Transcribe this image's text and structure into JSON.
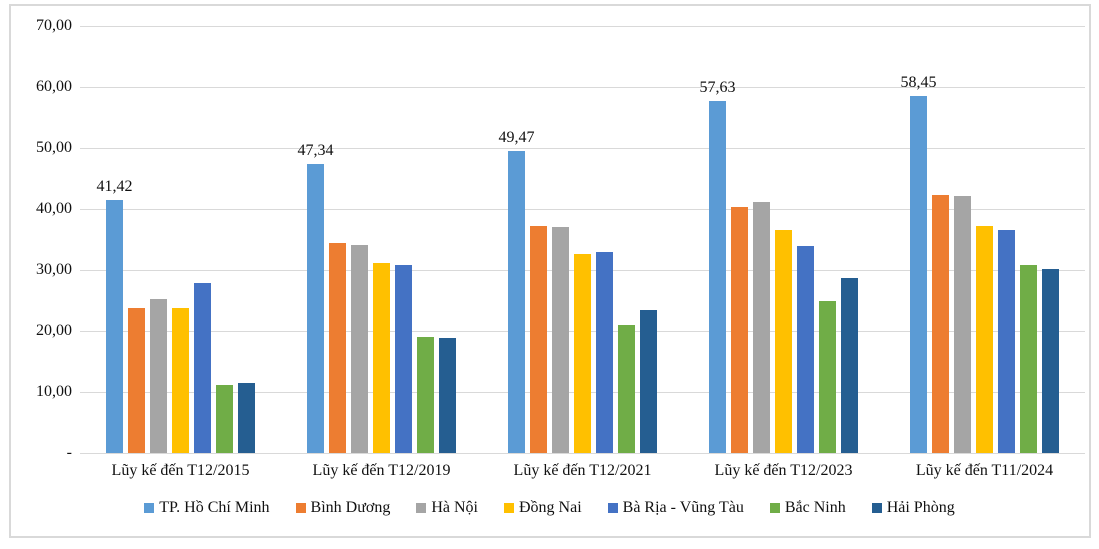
{
  "chart_data": {
    "type": "bar",
    "title": "",
    "xlabel": "",
    "ylabel": "",
    "ylim": [
      0,
      70
    ],
    "grid": true,
    "legend_position": "bottom",
    "yticks": [
      {
        "value": 70,
        "label": "70,00"
      },
      {
        "value": 60,
        "label": "60,00"
      },
      {
        "value": 50,
        "label": "50,00"
      },
      {
        "value": 40,
        "label": "40,00"
      },
      {
        "value": 30,
        "label": "30,00"
      },
      {
        "value": 20,
        "label": "20,00"
      },
      {
        "value": 10,
        "label": "10,00"
      },
      {
        "value": 0,
        "label": "-"
      }
    ],
    "categories": [
      "Lũy kế đến T12/2015",
      "Lũy kế đến T12/2019",
      "Lũy kế đến T12/2021",
      "Lũy kế đến T12/2023",
      "Lũy kế đến T11/2024"
    ],
    "series": [
      {
        "name": "TP. Hồ Chí Minh",
        "color": "#5B9BD5",
        "values": [
          41.42,
          47.34,
          49.47,
          57.63,
          58.45
        ],
        "labels": [
          "41,42",
          "47,34",
          "49,47",
          "57,63",
          "58,45"
        ]
      },
      {
        "name": "Bình Dương",
        "color": "#ED7D31",
        "values": [
          23.7,
          34.4,
          37.2,
          40.3,
          42.3
        ]
      },
      {
        "name": "Hà Nội",
        "color": "#A5A5A5",
        "values": [
          25.2,
          34.1,
          37.0,
          41.1,
          42.1
        ]
      },
      {
        "name": "Đồng Nai",
        "color": "#FFC000",
        "values": [
          23.7,
          31.2,
          32.7,
          36.6,
          37.2
        ]
      },
      {
        "name": "Bà Rịa - Vũng Tàu",
        "color": "#4472C4",
        "values": [
          27.9,
          30.9,
          32.9,
          33.9,
          36.5
        ]
      },
      {
        "name": "Bắc Ninh",
        "color": "#70AD47",
        "values": [
          11.1,
          19.0,
          21.0,
          24.9,
          30.8
        ]
      },
      {
        "name": "Hải Phòng",
        "color": "#255E91",
        "values": [
          11.4,
          18.8,
          23.4,
          28.7,
          30.1
        ]
      }
    ]
  }
}
